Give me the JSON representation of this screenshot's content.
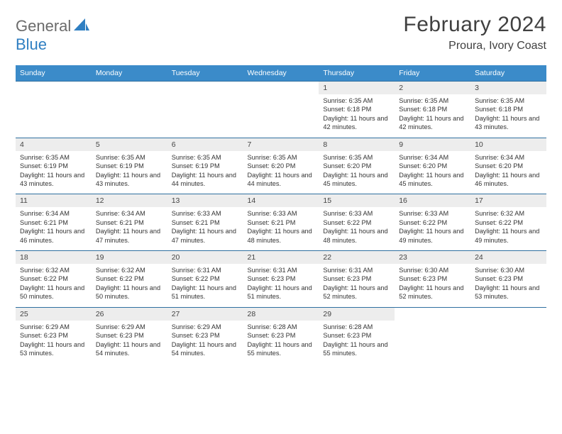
{
  "logo": {
    "text1": "General",
    "text2": "Blue"
  },
  "title": "February 2024",
  "location": "Proura, Ivory Coast",
  "colors": {
    "header_bg": "#3b8bc9",
    "header_text": "#ffffff",
    "daynum_bg": "#ededed",
    "row_border": "#2f6fa0",
    "logo_gray": "#6b6b6b",
    "logo_blue": "#2f7fc2"
  },
  "day_headers": [
    "Sunday",
    "Monday",
    "Tuesday",
    "Wednesday",
    "Thursday",
    "Friday",
    "Saturday"
  ],
  "weeks": [
    [
      null,
      null,
      null,
      null,
      {
        "n": "1",
        "sr": "6:35 AM",
        "ss": "6:18 PM",
        "dl": "11 hours and 42 minutes."
      },
      {
        "n": "2",
        "sr": "6:35 AM",
        "ss": "6:18 PM",
        "dl": "11 hours and 42 minutes."
      },
      {
        "n": "3",
        "sr": "6:35 AM",
        "ss": "6:18 PM",
        "dl": "11 hours and 43 minutes."
      }
    ],
    [
      {
        "n": "4",
        "sr": "6:35 AM",
        "ss": "6:19 PM",
        "dl": "11 hours and 43 minutes."
      },
      {
        "n": "5",
        "sr": "6:35 AM",
        "ss": "6:19 PM",
        "dl": "11 hours and 43 minutes."
      },
      {
        "n": "6",
        "sr": "6:35 AM",
        "ss": "6:19 PM",
        "dl": "11 hours and 44 minutes."
      },
      {
        "n": "7",
        "sr": "6:35 AM",
        "ss": "6:20 PM",
        "dl": "11 hours and 44 minutes."
      },
      {
        "n": "8",
        "sr": "6:35 AM",
        "ss": "6:20 PM",
        "dl": "11 hours and 45 minutes."
      },
      {
        "n": "9",
        "sr": "6:34 AM",
        "ss": "6:20 PM",
        "dl": "11 hours and 45 minutes."
      },
      {
        "n": "10",
        "sr": "6:34 AM",
        "ss": "6:20 PM",
        "dl": "11 hours and 46 minutes."
      }
    ],
    [
      {
        "n": "11",
        "sr": "6:34 AM",
        "ss": "6:21 PM",
        "dl": "11 hours and 46 minutes."
      },
      {
        "n": "12",
        "sr": "6:34 AM",
        "ss": "6:21 PM",
        "dl": "11 hours and 47 minutes."
      },
      {
        "n": "13",
        "sr": "6:33 AM",
        "ss": "6:21 PM",
        "dl": "11 hours and 47 minutes."
      },
      {
        "n": "14",
        "sr": "6:33 AM",
        "ss": "6:21 PM",
        "dl": "11 hours and 48 minutes."
      },
      {
        "n": "15",
        "sr": "6:33 AM",
        "ss": "6:22 PM",
        "dl": "11 hours and 48 minutes."
      },
      {
        "n": "16",
        "sr": "6:33 AM",
        "ss": "6:22 PM",
        "dl": "11 hours and 49 minutes."
      },
      {
        "n": "17",
        "sr": "6:32 AM",
        "ss": "6:22 PM",
        "dl": "11 hours and 49 minutes."
      }
    ],
    [
      {
        "n": "18",
        "sr": "6:32 AM",
        "ss": "6:22 PM",
        "dl": "11 hours and 50 minutes."
      },
      {
        "n": "19",
        "sr": "6:32 AM",
        "ss": "6:22 PM",
        "dl": "11 hours and 50 minutes."
      },
      {
        "n": "20",
        "sr": "6:31 AM",
        "ss": "6:22 PM",
        "dl": "11 hours and 51 minutes."
      },
      {
        "n": "21",
        "sr": "6:31 AM",
        "ss": "6:23 PM",
        "dl": "11 hours and 51 minutes."
      },
      {
        "n": "22",
        "sr": "6:31 AM",
        "ss": "6:23 PM",
        "dl": "11 hours and 52 minutes."
      },
      {
        "n": "23",
        "sr": "6:30 AM",
        "ss": "6:23 PM",
        "dl": "11 hours and 52 minutes."
      },
      {
        "n": "24",
        "sr": "6:30 AM",
        "ss": "6:23 PM",
        "dl": "11 hours and 53 minutes."
      }
    ],
    [
      {
        "n": "25",
        "sr": "6:29 AM",
        "ss": "6:23 PM",
        "dl": "11 hours and 53 minutes."
      },
      {
        "n": "26",
        "sr": "6:29 AM",
        "ss": "6:23 PM",
        "dl": "11 hours and 54 minutes."
      },
      {
        "n": "27",
        "sr": "6:29 AM",
        "ss": "6:23 PM",
        "dl": "11 hours and 54 minutes."
      },
      {
        "n": "28",
        "sr": "6:28 AM",
        "ss": "6:23 PM",
        "dl": "11 hours and 55 minutes."
      },
      {
        "n": "29",
        "sr": "6:28 AM",
        "ss": "6:23 PM",
        "dl": "11 hours and 55 minutes."
      },
      null,
      null
    ]
  ],
  "labels": {
    "sunrise": "Sunrise: ",
    "sunset": "Sunset: ",
    "daylight": "Daylight: "
  }
}
